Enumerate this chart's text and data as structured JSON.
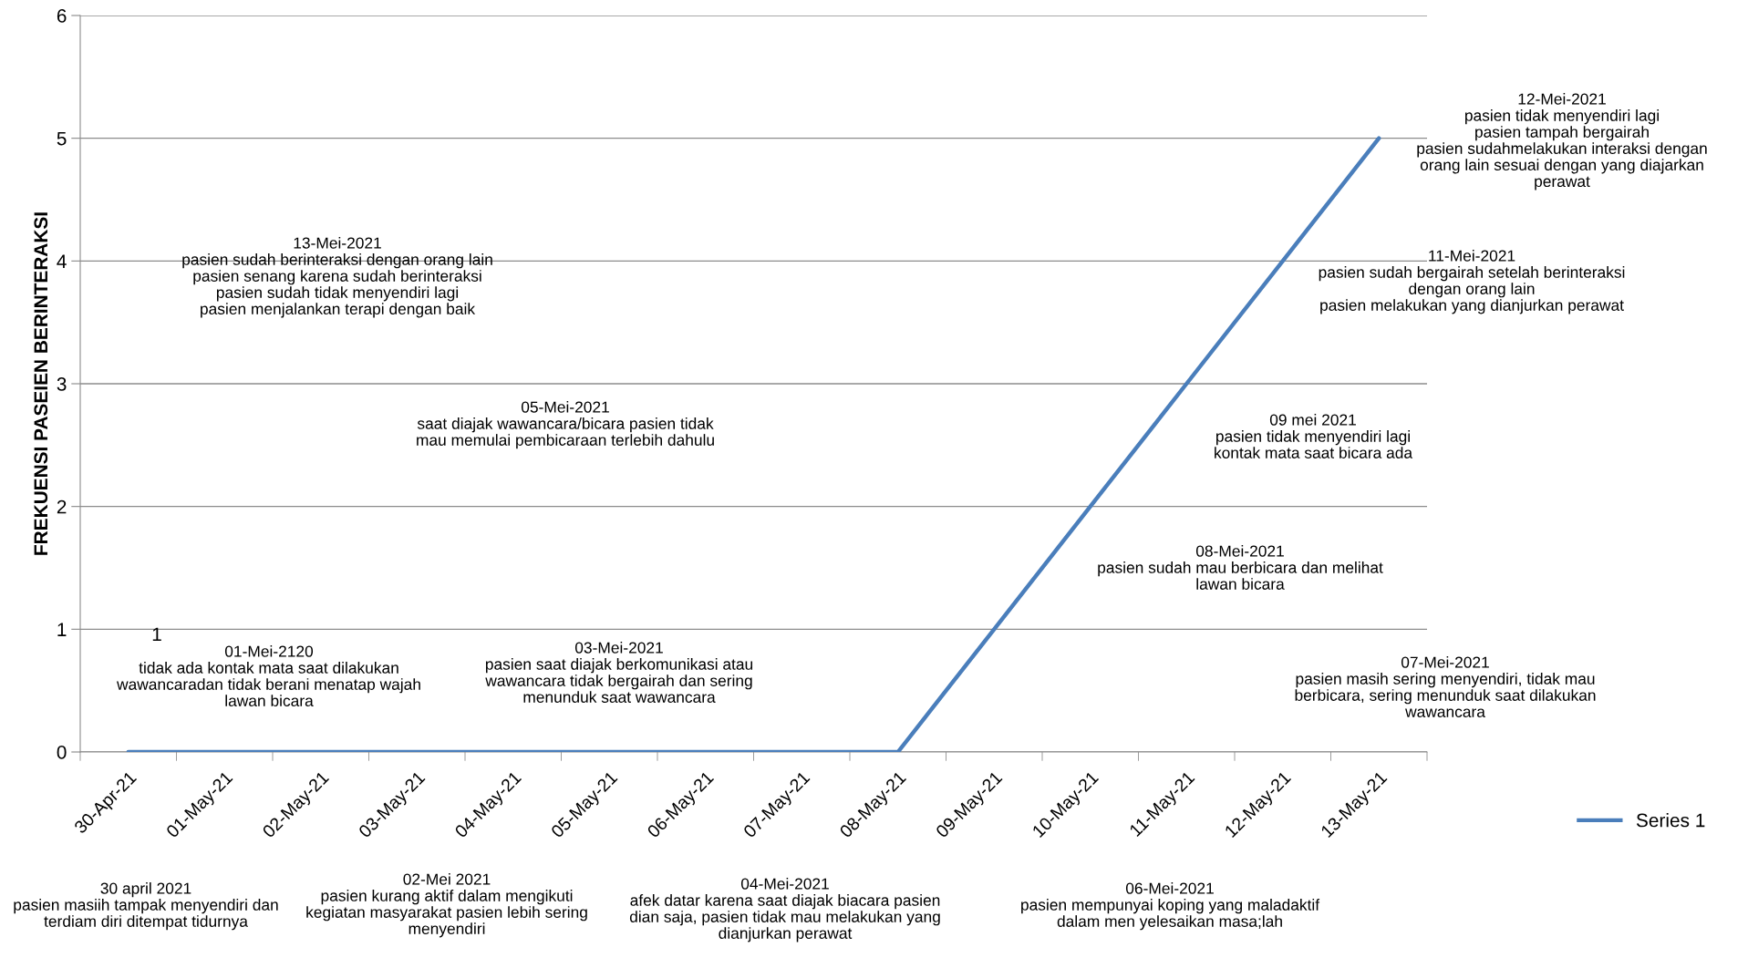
{
  "chart_data": {
    "type": "line",
    "ylabel": "FREKUENSI PASEIEN BERINTERAKSI",
    "categories": [
      "30-Apr-21",
      "01-May-21",
      "02-May-21",
      "03-May-21",
      "04-May-21",
      "05-May-21",
      "06-May-21",
      "07-May-21",
      "08-May-21",
      "09-May-21",
      "10-May-21",
      "11-May-21",
      "12-May-21",
      "13-May-21"
    ],
    "series": [
      {
        "name": "Series 1",
        "color": "#4a7ebb",
        "values": [
          0,
          0,
          0,
          0,
          0,
          0,
          0,
          0,
          0,
          1,
          2,
          3,
          4,
          5
        ]
      }
    ],
    "ylim": [
      0,
      6
    ],
    "yticks": [
      0,
      1,
      2,
      3,
      4,
      5,
      6
    ],
    "grid": "y",
    "legend": "right",
    "marker": "none",
    "line_style": "solid",
    "annotations": [
      "1",
      "01-Mei-2120\ntidak ada kontak mata saat dilakukan\nwawancaradan tidak berani menatap wajah\nlawan bicara",
      "13-Mei-2021\npasien sudah berinteraksi dengan orang lain\npasien senang karena sudah berinteraksi\npasien sudah tidak menyendiri lagi\npasien menjalankan terapi dengan baik",
      "03-Mei-2021\npasien saat diajak berkomunikasi atau\nwawancara tidak bergairah dan sering\nmenunduk saat wawancara",
      "05-Mei-2021\nsaat diajak wawancara/bicara pasien tidak\nmau memulai pembicaraan terlebih dahulu",
      "07-Mei-2021\npasien masih sering menyendiri, tidak mau\nberbicara, sering menunduk saat dilakukan\nwawancara",
      "08-Mei-2021\npasien sudah mau berbicara dan melihat\nlawan bicara",
      "09 mei 2021\npasien tidak menyendiri lagi\nkontak mata saat bicara ada",
      "11-Mei-2021\npasien sudah bergairah setelah berinteraksi\ndengan orang lain\npasien melakukan yang dianjurkan perawat",
      "12-Mei-2021\npasien tidak menyendiri lagi\npasien tampah bergairah\npasien sudahmelakukan interaksi dengan\norang lain sesuai dengan yang diajarkan\nperawat",
      "30 april 2021\npasien masiih tampak menyendiri dan\nterdiam diri ditempat tidurnya",
      "02-Mei 2021\npasien kurang aktif dalam mengikuti\nkegiatan masyarakat pasien lebih sering\nmenyendiri",
      "04-Mei-2021\nafek datar karena saat diajak biacara pasien\ndian saja, pasien tidak mau melakukan yang\ndianjurkan perawat",
      "06-Mei-2021\npasien mempunyai koping yang maladaktif\ndalam men yelesaikan masa;lah"
    ]
  }
}
